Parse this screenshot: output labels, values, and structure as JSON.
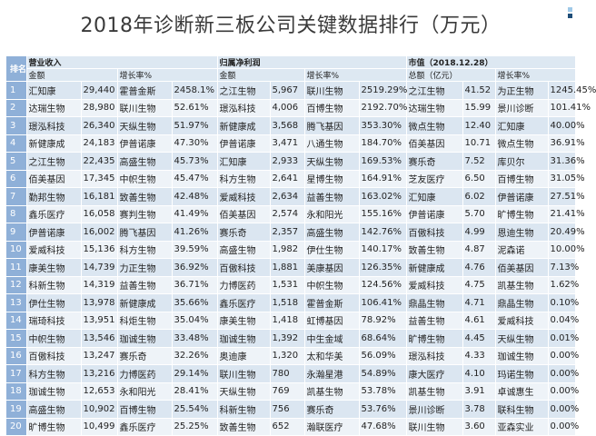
{
  "title": "2018年诊断新三板公司关键数据排行（万元）",
  "header": {
    "rank": "排名",
    "revenue_group": "营业收入",
    "profit_group": "归属净利润",
    "mktcap_group": "市值（2018.12.28）",
    "sub": [
      "金额",
      "增长率%",
      "金额",
      "增长率%",
      "总额（亿元）",
      "增长率%"
    ]
  },
  "rows": [
    [
      "1",
      "汇知康",
      "29,440",
      "霍普金斯",
      "2458.1%",
      "之江生物",
      "5,967",
      "联川生物",
      "2519.29%",
      "之江生物",
      "41.52",
      "为正生物",
      "1245.45%"
    ],
    [
      "2",
      "达瑞生物",
      "28,980",
      "联川生物",
      "52.61%",
      "璟泓科技",
      "4,006",
      "百博生物",
      "2192.70%",
      "达瑞生物",
      "15.99",
      "景川诊断",
      "101.41%"
    ],
    [
      "3",
      "璟泓科技",
      "26,340",
      "天纵生物",
      "51.97%",
      "新健康成",
      "3,568",
      "腾飞基因",
      "353.30%",
      "微点生物",
      "12.40",
      "汇知康",
      "40.00%"
    ],
    [
      "4",
      "新健康成",
      "24,183",
      "伊普诺康",
      "47.30%",
      "伊普诺康",
      "3,471",
      "八通生物",
      "184.70%",
      "佰美基因",
      "10.71",
      "微点生物",
      "36.91%"
    ],
    [
      "5",
      "之江生物",
      "22,435",
      "高盛生物",
      "45.73%",
      "汇知康",
      "2,933",
      "天纵生物",
      "169.53%",
      "赛乐奇",
      "7.52",
      "库贝尔",
      "31.36%"
    ],
    [
      "6",
      "佰美基因",
      "17,345",
      "中帜生物",
      "45.47%",
      "科方生物",
      "2,641",
      "星博生物",
      "164.91%",
      "芝友医疗",
      "6.50",
      "百博生物",
      "31.05%"
    ],
    [
      "7",
      "勤邦生物",
      "16,181",
      "致善生物",
      "42.48%",
      "爱威科技",
      "2,634",
      "益善生物",
      "163.02%",
      "汇知康",
      "6.02",
      "伊普诺康",
      "27.51%"
    ],
    [
      "8",
      "鑫乐医疗",
      "16,058",
      "赛判生物",
      "41.49%",
      "佰美基因",
      "2,574",
      "永和阳光",
      "155.16%",
      "伊普诺康",
      "5.70",
      "旷博生物",
      "21.41%"
    ],
    [
      "9",
      "伊普诺康",
      "16,002",
      "腾飞基因",
      "41.26%",
      "赛乐奇",
      "2,357",
      "高盛生物",
      "142.76%",
      "百傲科技",
      "4.99",
      "恩迪生物",
      "20.49%"
    ],
    [
      "10",
      "爱威科技",
      "15,136",
      "科方生物",
      "39.59%",
      "高盛生物",
      "1,982",
      "伊仕生物",
      "140.17%",
      "致善生物",
      "4.87",
      "泥森诺",
      "10.00%"
    ],
    [
      "11",
      "康美生物",
      "14,739",
      "力正生物",
      "36.92%",
      "百傲科技",
      "1,881",
      "美康基因",
      "126.35%",
      "新健康成",
      "4.76",
      "佰美基因",
      "7.13%"
    ],
    [
      "12",
      "科新生物",
      "14,319",
      "益善生物",
      "36.71%",
      "力博医药",
      "1,531",
      "中帜生物",
      "124.56%",
      "爱威科技",
      "4.75",
      "凯基生物",
      "1.62%"
    ],
    [
      "13",
      "伊仕生物",
      "13,978",
      "新健康成",
      "35.66%",
      "鑫乐医疗",
      "1,518",
      "霍普金斯",
      "106.41%",
      "鼎晶生物",
      "4.71",
      "鼎晶生物",
      "0.10%"
    ],
    [
      "14",
      "瑞琦科技",
      "13,951",
      "科炬生物",
      "35.04%",
      "康美生物",
      "1,418",
      "虹博基因",
      "78.92%",
      "益善生物",
      "4.61",
      "爱威科技",
      "0.04%"
    ],
    [
      "15",
      "中帜生物",
      "13,546",
      "珈诚生物",
      "33.48%",
      "珈诚生物",
      "1,392",
      "中生金域",
      "68.64%",
      "旷博生物",
      "4.45",
      "天纵生物",
      "0.01%"
    ],
    [
      "16",
      "百傲科技",
      "13,247",
      "赛乐奇",
      "32.26%",
      "奥迪康",
      "1,320",
      "太和华美",
      "56.09%",
      "璟泓科技",
      "4.33",
      "珈诚生物",
      "0.00%"
    ],
    [
      "17",
      "科方生物",
      "13,216",
      "力博医药",
      "29.14%",
      "联川生物",
      "780",
      "永瀚星港",
      "54.89%",
      "康大医疗",
      "4.10",
      "玛诺生物",
      "0.00%"
    ],
    [
      "18",
      "珈诚生物",
      "12,653",
      "永和阳光",
      "28.41%",
      "天纵生物",
      "769",
      "凯基生物",
      "53.78%",
      "凯基生物",
      "3.91",
      "卓诚惠生",
      "0.00%"
    ],
    [
      "19",
      "高盛生物",
      "10,902",
      "百博生物",
      "25.54%",
      "科新生物",
      "756",
      "赛乐奇",
      "53.76%",
      "景川诊断",
      "3.78",
      "联科生物",
      "0.00%"
    ],
    [
      "20",
      "旷博生物",
      "10,499",
      "鑫乐医疗",
      "25.25%",
      "致善生物",
      "652",
      "瀚联医疗",
      "47.68%",
      "联川生物",
      "3.60",
      "亚森实业",
      "0.00%"
    ]
  ],
  "colors": {
    "rank_col": "#8fb0d8",
    "row_odd": "#dbe6f1",
    "row_even": "#eef3f8",
    "header": "#dde8f2"
  }
}
